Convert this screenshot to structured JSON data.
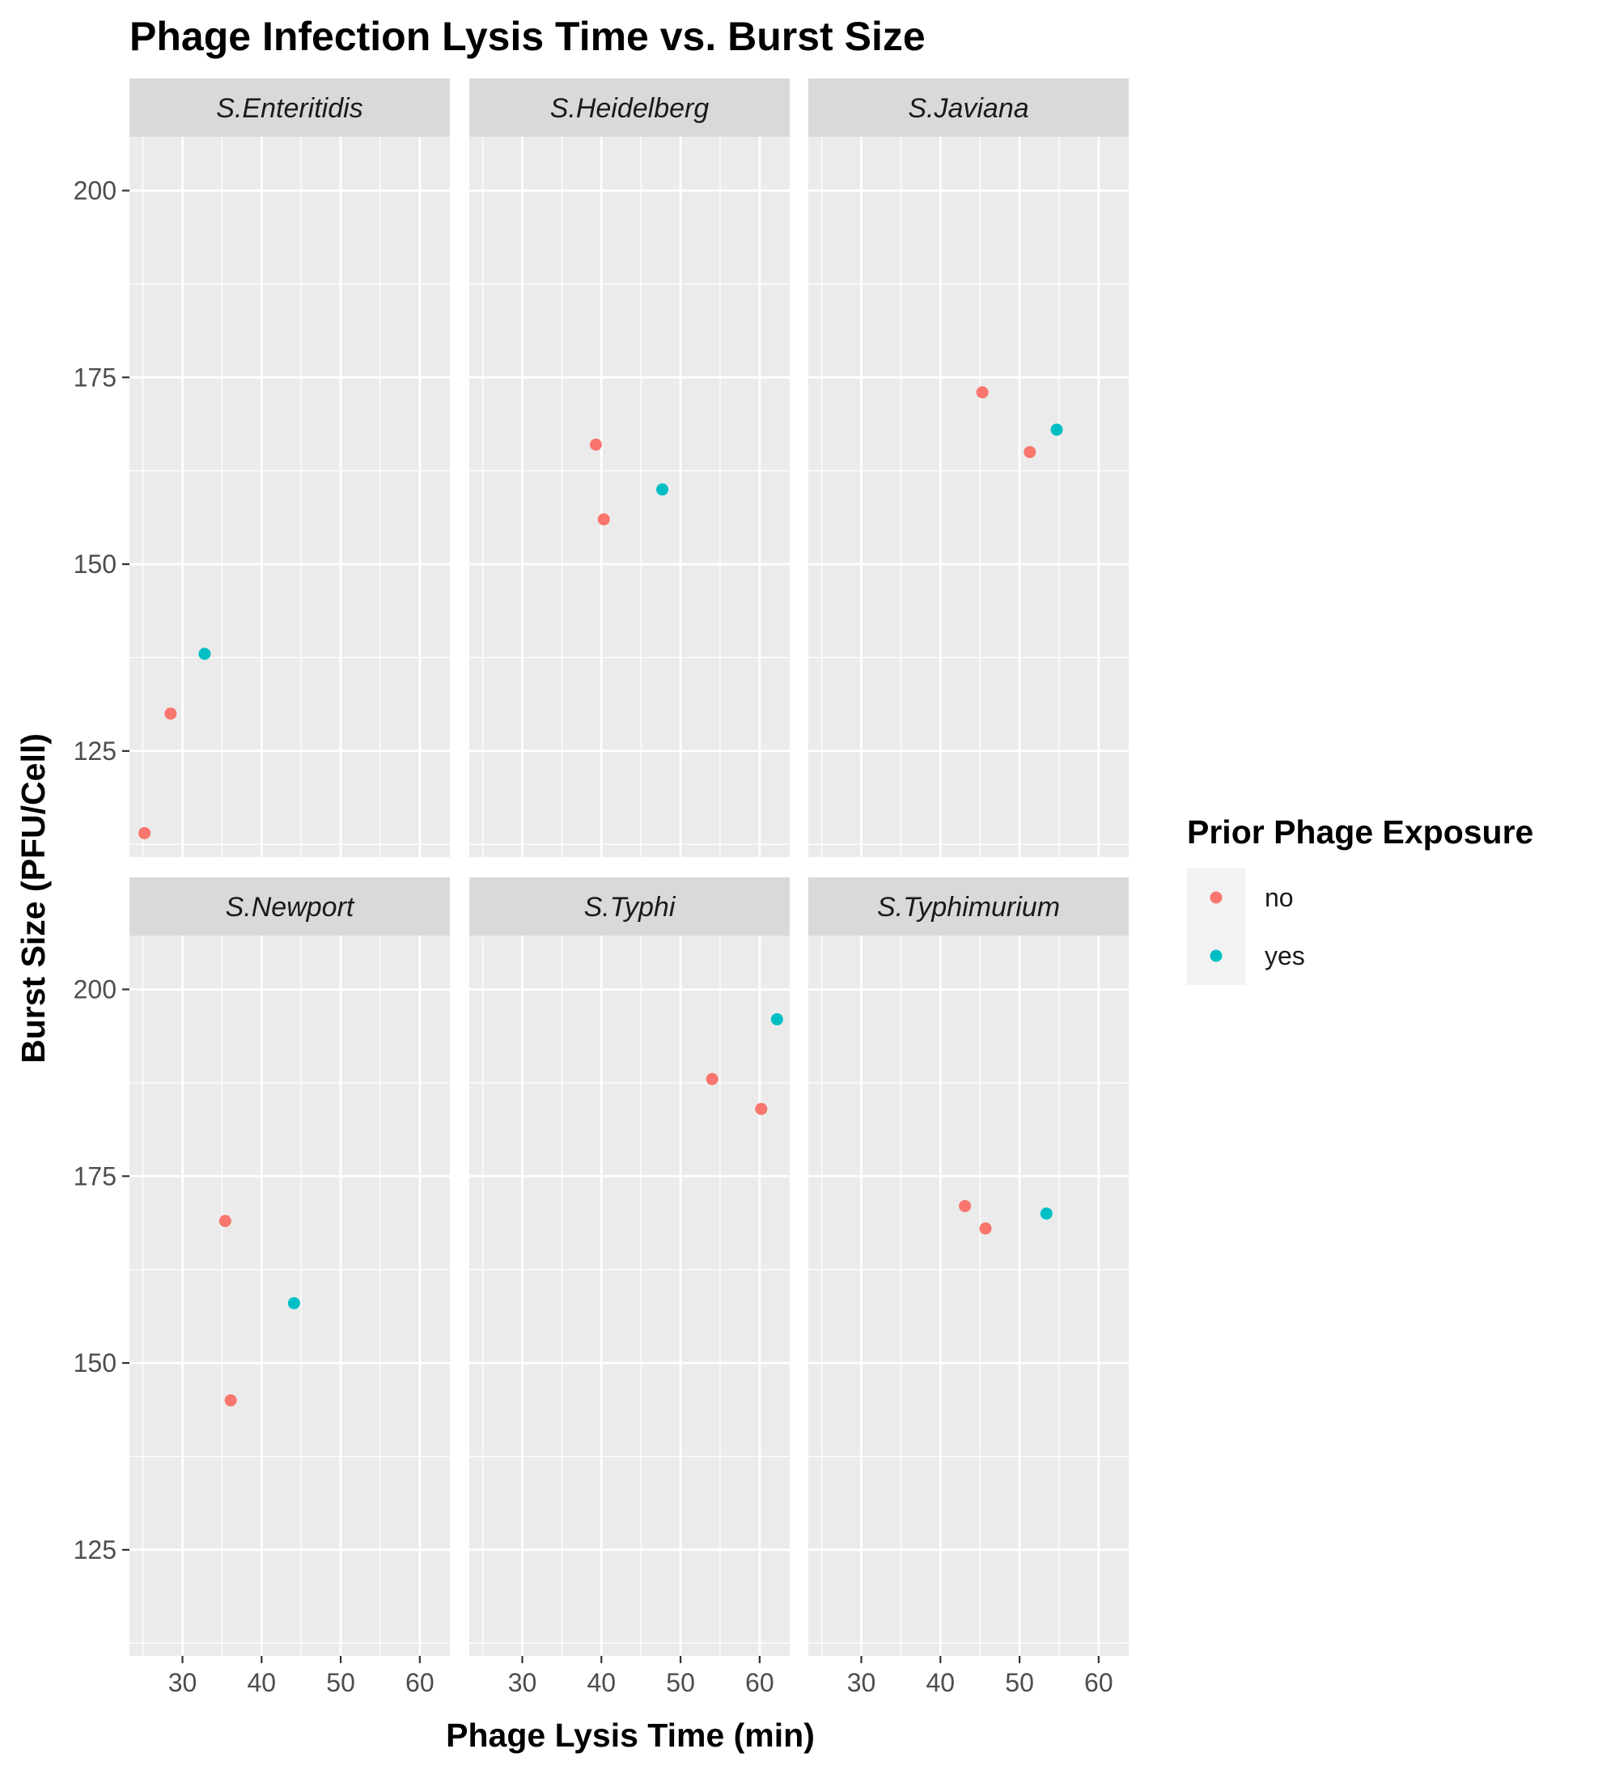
{
  "chart_data": {
    "type": "scatter",
    "title": "Phage Infection Lysis Time vs. Burst Size",
    "xlabel": "Phage Lysis Time (min)",
    "ylabel": "Burst Size (PFU/Cell)",
    "xlim": [
      23.3,
      63.8
    ],
    "ylim": [
      110.8,
      207.2
    ],
    "x_ticks": [
      30,
      40,
      50,
      60
    ],
    "y_ticks": [
      125,
      150,
      175,
      200
    ],
    "grid": true,
    "legend": {
      "title": "Prior Phage Exposure",
      "placement": "right",
      "entries": [
        {
          "label": "no",
          "color": "#F8766D"
        },
        {
          "label": "yes",
          "color": "#00BFC4"
        }
      ]
    },
    "facets": [
      {
        "name": "S.Enteritidis",
        "points": [
          {
            "x": 25.2,
            "y": 114,
            "group": "no"
          },
          {
            "x": 28.5,
            "y": 130,
            "group": "no"
          },
          {
            "x": 32.8,
            "y": 138,
            "group": "yes"
          }
        ]
      },
      {
        "name": "S.Heidelberg",
        "points": [
          {
            "x": 39.3,
            "y": 166,
            "group": "no"
          },
          {
            "x": 40.3,
            "y": 156,
            "group": "no"
          },
          {
            "x": 47.7,
            "y": 160,
            "group": "yes"
          }
        ]
      },
      {
        "name": "S.Javiana",
        "points": [
          {
            "x": 45.3,
            "y": 173,
            "group": "no"
          },
          {
            "x": 51.3,
            "y": 165,
            "group": "no"
          },
          {
            "x": 54.7,
            "y": 168,
            "group": "yes"
          }
        ]
      },
      {
        "name": "S.Newport",
        "points": [
          {
            "x": 35.4,
            "y": 169,
            "group": "no"
          },
          {
            "x": 36.1,
            "y": 145,
            "group": "no"
          },
          {
            "x": 44.1,
            "y": 158,
            "group": "yes"
          }
        ]
      },
      {
        "name": "S.Typhi",
        "points": [
          {
            "x": 54.0,
            "y": 188,
            "group": "no"
          },
          {
            "x": 60.2,
            "y": 184,
            "group": "no"
          },
          {
            "x": 62.2,
            "y": 196,
            "group": "yes"
          }
        ]
      },
      {
        "name": "S.Typhimurium",
        "points": [
          {
            "x": 43.1,
            "y": 171,
            "group": "no"
          },
          {
            "x": 45.7,
            "y": 168,
            "group": "no"
          },
          {
            "x": 53.4,
            "y": 170,
            "group": "yes"
          }
        ]
      }
    ]
  }
}
